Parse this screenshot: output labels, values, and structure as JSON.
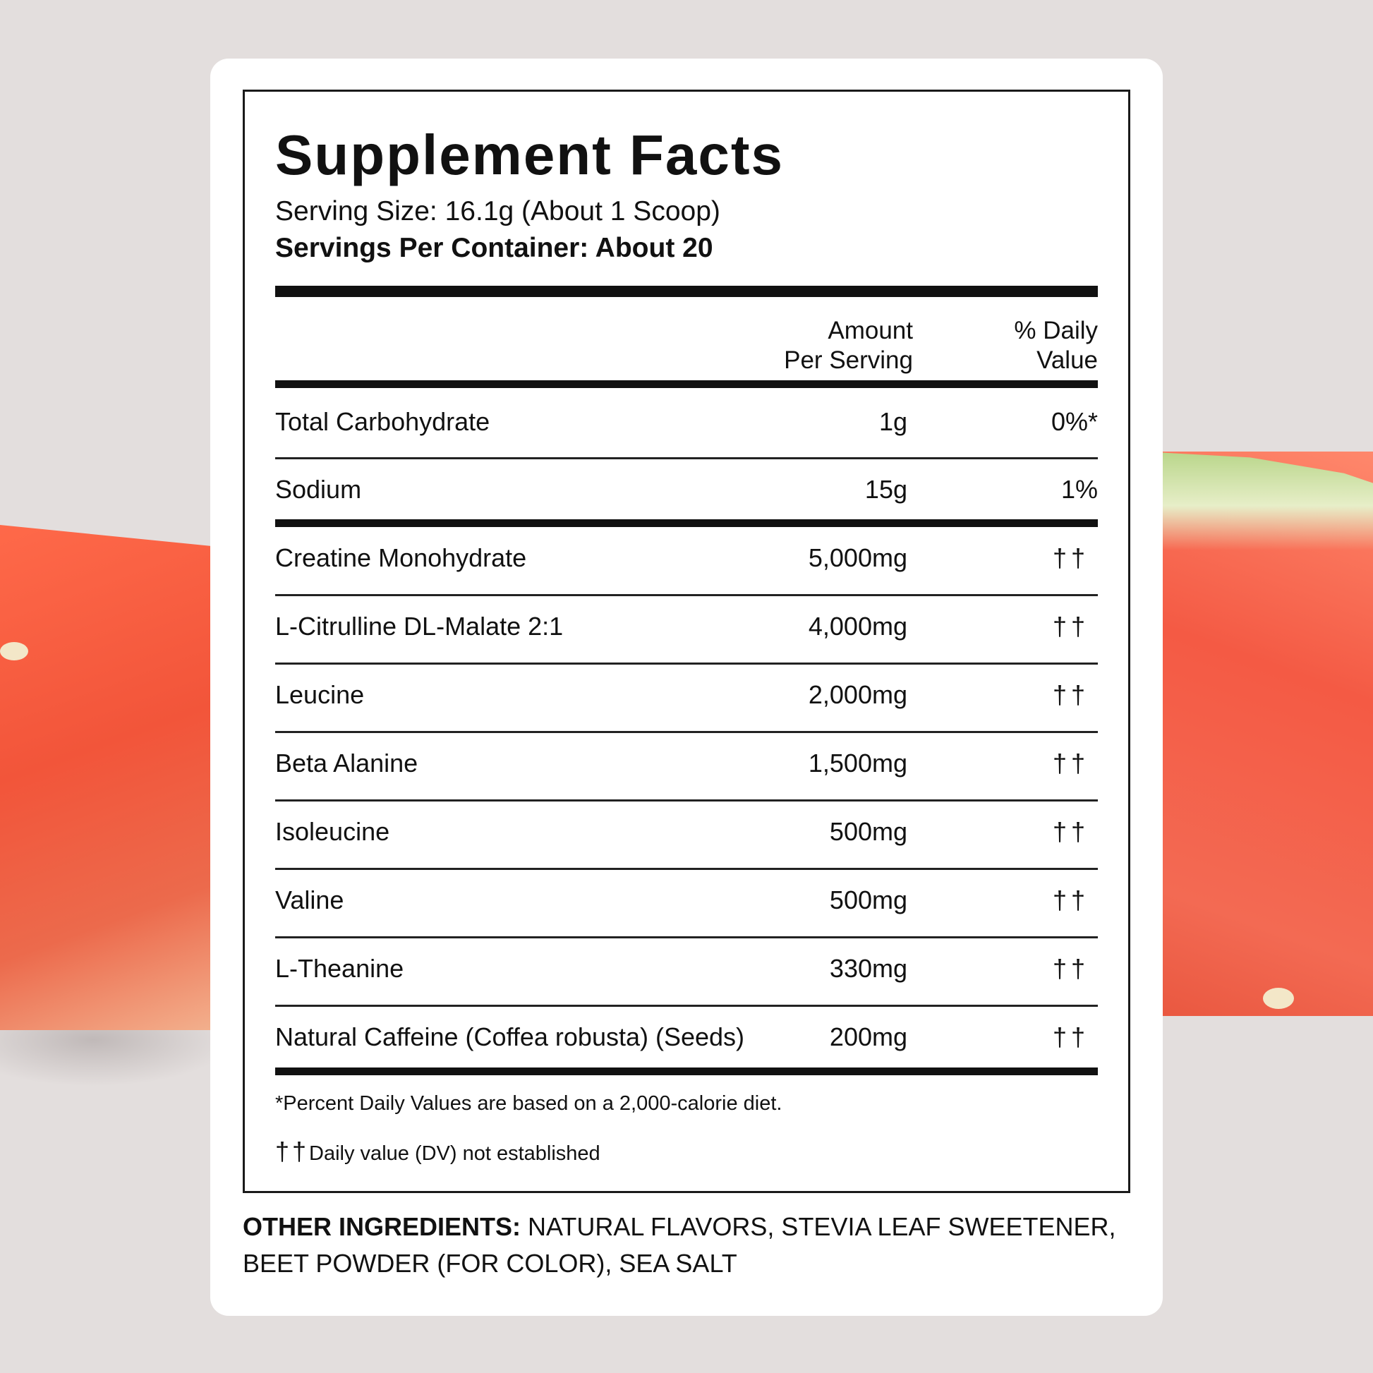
{
  "title": "Supplement Facts",
  "serving_size": "Serving Size: 16.1g (About 1 Scoop)",
  "servings_per_container": "Servings Per Container: About 20",
  "header": {
    "amount_line1": "Amount",
    "amount_line2": "Per Serving",
    "dv_line1": "% Daily",
    "dv_line2": "Value"
  },
  "rows": [
    {
      "name": "Total Carbohydrate",
      "amount": "1g",
      "dv": "0%*"
    },
    {
      "name": "Sodium",
      "amount": "15g",
      "dv": "1%"
    },
    {
      "name": "Creatine Monohydrate",
      "amount": "5,000mg",
      "dv": "††"
    },
    {
      "name": "L-Citrulline DL-Malate 2:1",
      "amount": "4,000mg",
      "dv": "††"
    },
    {
      "name": "Leucine",
      "amount": "2,000mg",
      "dv": "††"
    },
    {
      "name": "Beta Alanine",
      "amount": "1,500mg",
      "dv": "††"
    },
    {
      "name": "Isoleucine",
      "amount": "500mg",
      "dv": "††"
    },
    {
      "name": "Valine",
      "amount": "500mg",
      "dv": "††"
    },
    {
      "name": "L-Theanine",
      "amount": "330mg",
      "dv": "††"
    },
    {
      "name": "Natural Caffeine",
      "name_sub": "(Coffea robusta) (Seeds)",
      "amount": "200mg",
      "dv": "††"
    }
  ],
  "footnote_percent": "*Percent Daily Values are based on a 2,000-calorie diet.",
  "footnote_dagger_symbol": "††",
  "footnote_dagger_text": "Daily value (DV) not established",
  "other_ingredients_label": "OTHER INGREDIENTS:",
  "other_ingredients_text": "NATURAL FLAVORS, STEVIA LEAF SWEETENER, BEET POWDER (FOR COLOR), SEA SALT",
  "colors": {
    "background": "#e3dedd",
    "card": "#ffffff",
    "ink": "#111111",
    "watermelon": "#f2553a"
  }
}
